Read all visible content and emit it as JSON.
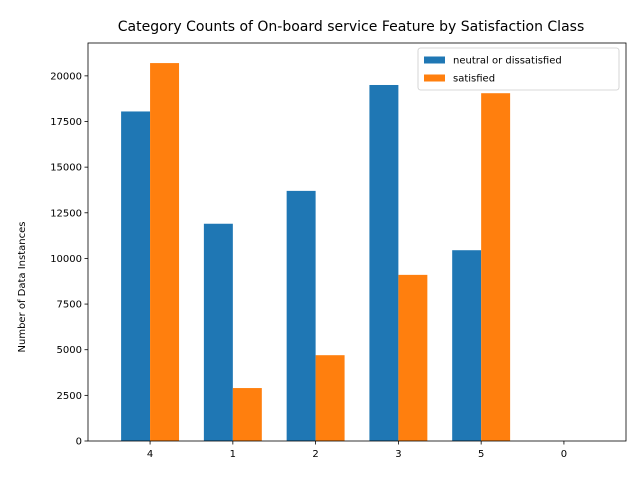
{
  "chart_data": {
    "type": "bar",
    "title": "Category Counts of On-board service Feature by Satisfaction Class",
    "xlabel": "",
    "ylabel": "Number of Data Instances",
    "categories": [
      "4",
      "1",
      "2",
      "3",
      "5",
      "0"
    ],
    "series": [
      {
        "name": "neutral or dissatisfied",
        "color": "#1f77b4",
        "values": [
          18050,
          11900,
          13700,
          19500,
          10450,
          0
        ]
      },
      {
        "name": "satisfied",
        "color": "#ff7f0e",
        "values": [
          20700,
          2900,
          4700,
          9100,
          19050,
          0
        ]
      }
    ],
    "ylim": [
      0,
      21800
    ],
    "yticks": [
      0,
      2500,
      5000,
      7500,
      10000,
      12500,
      15000,
      17500,
      20000
    ],
    "grid": false,
    "legend_position": "top-right"
  }
}
